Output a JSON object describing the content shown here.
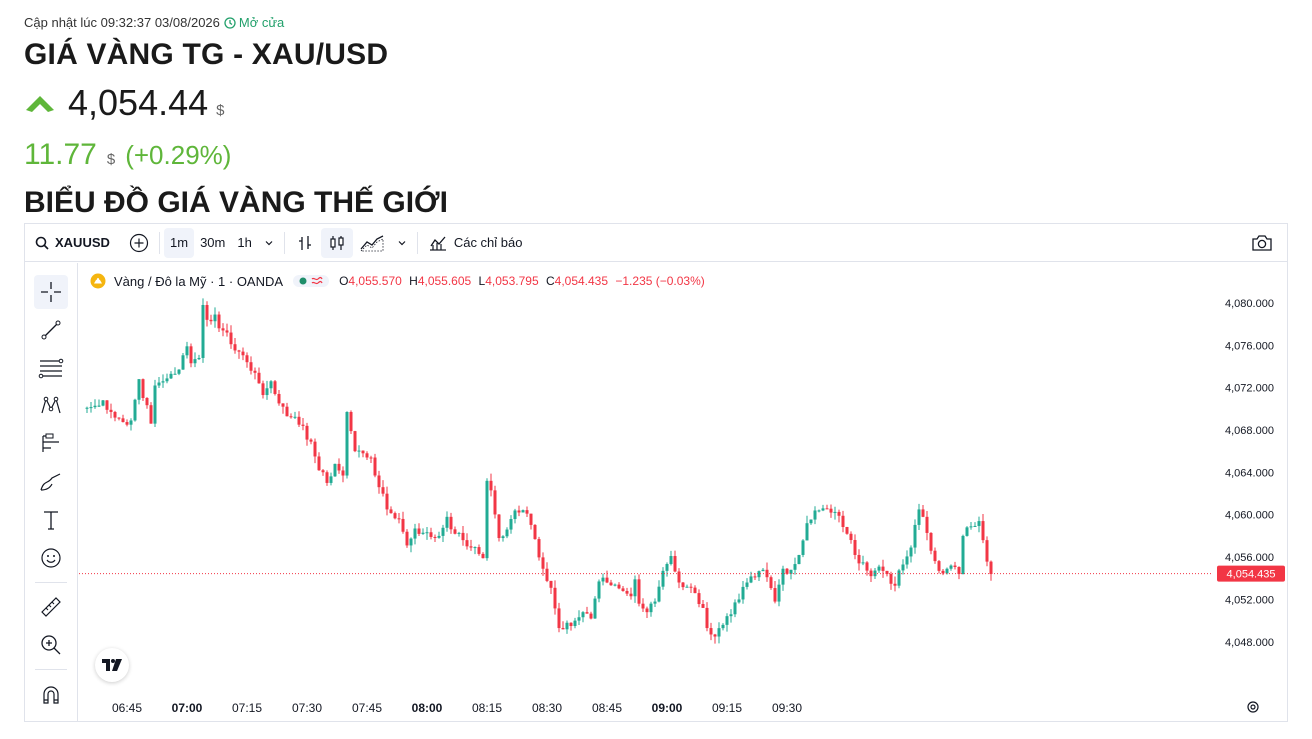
{
  "header": {
    "updated_label": "Cập nhật lúc 09:32:37 03/08/2026",
    "market_status": "Mở cửa",
    "title": "GIÁ VÀNG TG - XAU/USD",
    "price": "4,054.44",
    "price_unit": "$",
    "change": "11.77",
    "change_unit": "$",
    "change_pct": "(+0.29%)",
    "section_title": "BIỂU ĐỒ GIÁ VÀNG THẾ GIỚI",
    "up_color": "#5fb63a"
  },
  "toolbar": {
    "symbol": "XAUUSD",
    "intervals": [
      "1m",
      "30m",
      "1h"
    ],
    "active_interval": "1m",
    "indicators_label": "Các chỉ báo"
  },
  "legend": {
    "title": "Vàng / Đô la Mỹ · 1 · OANDA",
    "o_label": "O",
    "o_value": "4,055.570",
    "h_label": "H",
    "h_value": "4,055.605",
    "l_label": "L",
    "l_value": "4,053.795",
    "c_label": "C",
    "c_value": "4,054.435",
    "change": "−1.235 (−0.03%)"
  },
  "tools": [
    "crosshair-icon",
    "trend-line-icon",
    "fib-icon",
    "pattern-icon",
    "forecast-icon",
    "brush-icon",
    "text-icon",
    "emoji-icon",
    "ruler-icon",
    "zoom-icon",
    "magnet-icon"
  ],
  "chart_data": {
    "type": "candlestick",
    "symbol": "XAUUSD",
    "interval": "1m",
    "x_tick_labels": [
      "06:45",
      "07:00",
      "07:15",
      "07:30",
      "07:45",
      "08:00",
      "08:15",
      "08:30",
      "08:45",
      "09:00",
      "09:15",
      "09:30"
    ],
    "x_tick_bold": [
      "07:00",
      "08:00",
      "09:00"
    ],
    "y_tick_labels": [
      "4,048.000",
      "4,052.000",
      "4,056.000",
      "4,060.000",
      "4,064.000",
      "4,068.000",
      "4,072.000",
      "4,076.000",
      "4,080.000"
    ],
    "ylim": [
      4046,
      4081.5
    ],
    "last_price": 4054.435,
    "last_price_label": "4,054.435",
    "up_color": "#22ab94",
    "down_color": "#f23645",
    "start_time": "06:35",
    "close_path": [
      [
        0,
        4070.1
      ],
      [
        3,
        4070.3
      ],
      [
        4,
        4070.8
      ],
      [
        6,
        4069.7
      ],
      [
        8,
        4069.1
      ],
      [
        10,
        4068.5
      ],
      [
        11,
        4068.9
      ],
      [
        13,
        4072.8
      ],
      [
        16,
        4068.6
      ],
      [
        17,
        4072.2
      ],
      [
        19,
        4072.6
      ],
      [
        21,
        4073.3
      ],
      [
        23,
        4073.7
      ],
      [
        25,
        4075.9
      ],
      [
        26,
        4074.3
      ],
      [
        28,
        4074.8
      ],
      [
        29,
        4079.8
      ],
      [
        30,
        4078.4
      ],
      [
        32,
        4078.9
      ],
      [
        33,
        4077.6
      ],
      [
        35,
        4077.2
      ],
      [
        36,
        4076.1
      ],
      [
        38,
        4075.4
      ],
      [
        40,
        4074.4
      ],
      [
        42,
        4073.4
      ],
      [
        44,
        4071.3
      ],
      [
        46,
        4072.6
      ],
      [
        47,
        4071.4
      ],
      [
        49,
        4070.2
      ],
      [
        51,
        4069.2
      ],
      [
        53,
        4068.5
      ],
      [
        56,
        4066.9
      ],
      [
        58,
        4064.2
      ],
      [
        60,
        4063.0
      ],
      [
        62,
        4064.8
      ],
      [
        64,
        4063.7
      ],
      [
        65,
        4069.7
      ],
      [
        67,
        4066.0
      ],
      [
        69,
        4065.8
      ],
      [
        71,
        4065.4
      ],
      [
        73,
        4062.6
      ],
      [
        75,
        4060.5
      ],
      [
        78,
        4059.6
      ],
      [
        80,
        4057.1
      ],
      [
        82,
        4058.7
      ],
      [
        84,
        4058.3
      ],
      [
        86,
        4057.9
      ],
      [
        88,
        4058.0
      ],
      [
        90,
        4059.8
      ],
      [
        92,
        4058.2
      ],
      [
        94,
        4057.6
      ],
      [
        96,
        4056.9
      ],
      [
        98,
        4056.3
      ],
      [
        99,
        4055.9
      ],
      [
        100,
        4063.2
      ],
      [
        101,
        4062.3
      ],
      [
        103,
        4057.8
      ],
      [
        105,
        4058.6
      ],
      [
        107,
        4060.4
      ],
      [
        110,
        4060.1
      ],
      [
        112,
        4057.7
      ],
      [
        114,
        4054.9
      ],
      [
        116,
        4053.1
      ],
      [
        118,
        4049.3
      ],
      [
        120,
        4049.8
      ],
      [
        122,
        4050.0
      ],
      [
        124,
        4050.8
      ],
      [
        126,
        4050.2
      ],
      [
        128,
        4053.7
      ],
      [
        130,
        4053.6
      ],
      [
        132,
        4053.4
      ],
      [
        134,
        4052.8
      ],
      [
        136,
        4052.3
      ],
      [
        137,
        4053.9
      ],
      [
        138,
        4051.6
      ],
      [
        140,
        4050.8
      ],
      [
        142,
        4051.8
      ],
      [
        144,
        4054.7
      ],
      [
        146,
        4056.1
      ],
      [
        148,
        4053.6
      ],
      [
        150,
        4053.2
      ],
      [
        152,
        4052.6
      ],
      [
        154,
        4051.2
      ],
      [
        155,
        4049.3
      ],
      [
        157,
        4048.5
      ],
      [
        159,
        4049.6
      ],
      [
        161,
        4050.6
      ],
      [
        163,
        4052.0
      ],
      [
        165,
        4053.6
      ],
      [
        167,
        4054.1
      ],
      [
        169,
        4054.8
      ],
      [
        170,
        4054.1
      ],
      [
        172,
        4051.8
      ],
      [
        174,
        4054.9
      ],
      [
        176,
        4054.8
      ],
      [
        178,
        4056.2
      ],
      [
        180,
        4059.2
      ],
      [
        182,
        4060.4
      ],
      [
        184,
        4060.6
      ],
      [
        186,
        4060.2
      ],
      [
        188,
        4059.9
      ],
      [
        190,
        4058.2
      ],
      [
        192,
        4056.2
      ],
      [
        194,
        4055.5
      ],
      [
        196,
        4054.2
      ],
      [
        198,
        4055.1
      ],
      [
        200,
        4054.4
      ],
      [
        202,
        4053.3
      ],
      [
        204,
        4055.3
      ],
      [
        206,
        4056.9
      ],
      [
        208,
        4060.5
      ],
      [
        209,
        4059.8
      ],
      [
        211,
        4056.6
      ],
      [
        213,
        4054.7
      ],
      [
        215,
        4054.9
      ],
      [
        216,
        4055.2
      ],
      [
        218,
        4054.4
      ],
      [
        219,
        4058.0
      ],
      [
        221,
        4058.9
      ],
      [
        223,
        4059.4
      ],
      [
        224,
        4057.6
      ],
      [
        226,
        4054.4
      ]
    ]
  }
}
